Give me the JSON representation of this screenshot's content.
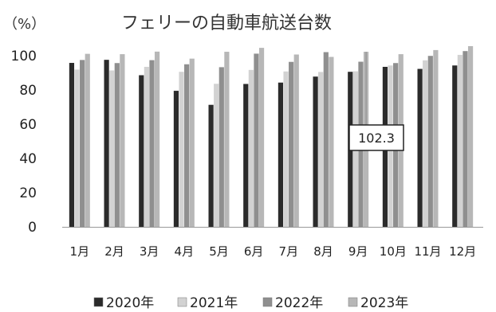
{
  "chart_data": {
    "type": "bar",
    "title": "フェリーの自動車航送台数",
    "unit_label": "（%）",
    "categories": [
      "1月",
      "2月",
      "3月",
      "4月",
      "5月",
      "6月",
      "7月",
      "8月",
      "9月",
      "10月",
      "11月",
      "12月"
    ],
    "yticks": [
      "0",
      "20",
      "40",
      "60",
      "80",
      "100"
    ],
    "ylim": [
      0,
      105
    ],
    "grid": false,
    "legend_position": "bottom",
    "series": [
      {
        "name": "2020年",
        "color": "#2b2b2b",
        "values": [
          95.8,
          97.6,
          88.6,
          79.5,
          71.3,
          83.5,
          84.3,
          87.8,
          90.6,
          93.5,
          92.3,
          94.3
        ]
      },
      {
        "name": "2021年",
        "color": "#d2d2d2",
        "values": [
          91.9,
          91.4,
          93.5,
          90.6,
          83.6,
          91.7,
          90.8,
          90.5,
          90.9,
          94.3,
          97.3,
          100.5
        ]
      },
      {
        "name": "2022年",
        "color": "#8f8f8f",
        "values": [
          97.5,
          95.7,
          97.4,
          95.0,
          93.3,
          101.2,
          96.4,
          102.1,
          96.5,
          95.7,
          99.9,
          102.7
        ]
      },
      {
        "name": "2023年",
        "color": "#b7b7b7",
        "values": [
          101.1,
          100.9,
          102.4,
          98.3,
          102.3,
          104.6,
          100.7,
          99.3,
          102.3,
          100.9,
          103.3,
          105.6
        ]
      }
    ],
    "annotation": {
      "text": "102.3",
      "category": "9月",
      "series": "2023年",
      "value": 102.3
    }
  }
}
